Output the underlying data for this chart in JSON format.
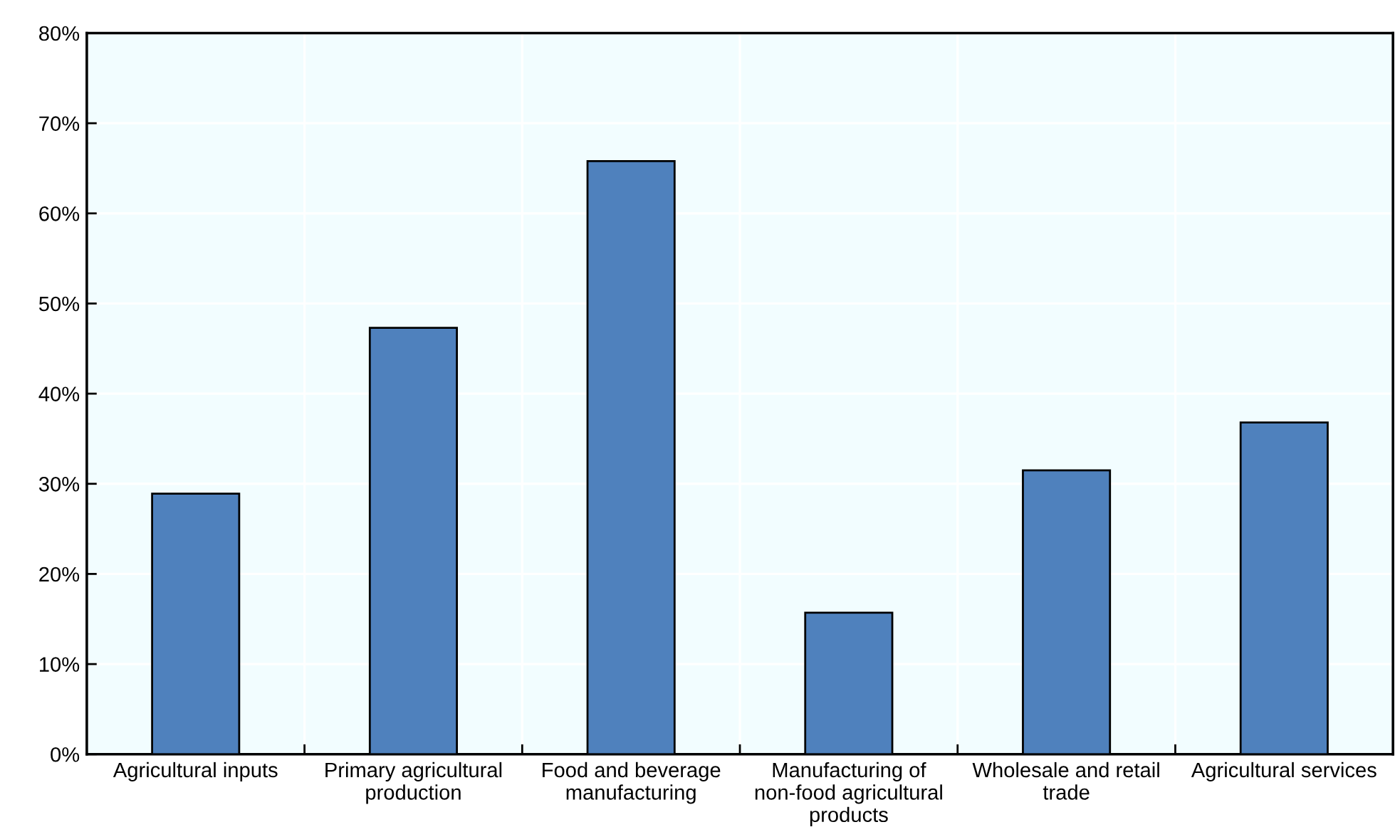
{
  "chart_data": {
    "type": "bar",
    "categories": [
      "Agricultural inputs",
      "Primary agricultural\nproduction",
      "Food and beverage\nmanufacturing",
      "Manufacturing of\nnon-food agricultural\nproducts",
      "Wholesale and retail\ntrade",
      "Agricultural services"
    ],
    "values": [
      28.9,
      47.3,
      65.8,
      15.7,
      31.5,
      36.8
    ],
    "color": "#4f81bd",
    "ylim": [
      0,
      80
    ],
    "yticks": [
      {
        "value": 0,
        "label": "0%"
      },
      {
        "value": 10,
        "label": "10%"
      },
      {
        "value": 20,
        "label": "20%"
      },
      {
        "value": 30,
        "label": "30%"
      },
      {
        "value": 40,
        "label": "40%"
      },
      {
        "value": 50,
        "label": "50%"
      },
      {
        "value": 60,
        "label": "60%"
      },
      {
        "value": 70,
        "label": "70%"
      },
      {
        "value": 80,
        "label": "80%"
      }
    ],
    "grid": true
  }
}
